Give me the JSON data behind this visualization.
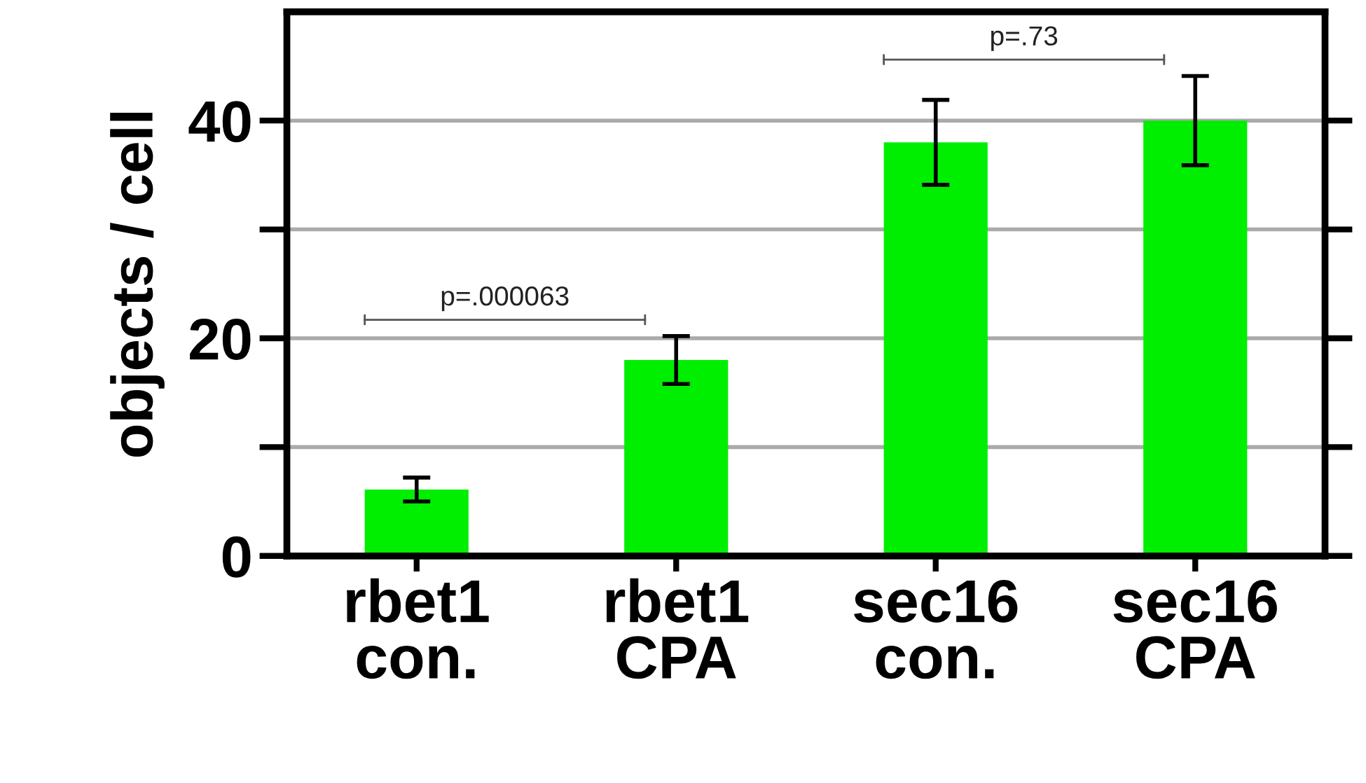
{
  "chart_data": {
    "type": "bar",
    "ylabel": "objects / cell",
    "categories": [
      "rbet1\ncon.",
      "rbet1\nCPA",
      "sec16\ncon.",
      "sec16\nCPA"
    ],
    "values": [
      6.1,
      18.0,
      38.0,
      40.0
    ],
    "errors": [
      1.1,
      2.2,
      3.9,
      4.1
    ],
    "color": "#00ee00",
    "ylim": [
      0,
      50
    ],
    "yticks": [
      0,
      {
        "value": 10,
        "label": null
      },
      20,
      {
        "value": 30,
        "label": null
      },
      40
    ],
    "grid": "y",
    "annotations": [
      "p=.000063",
      "p=.73"
    ]
  }
}
